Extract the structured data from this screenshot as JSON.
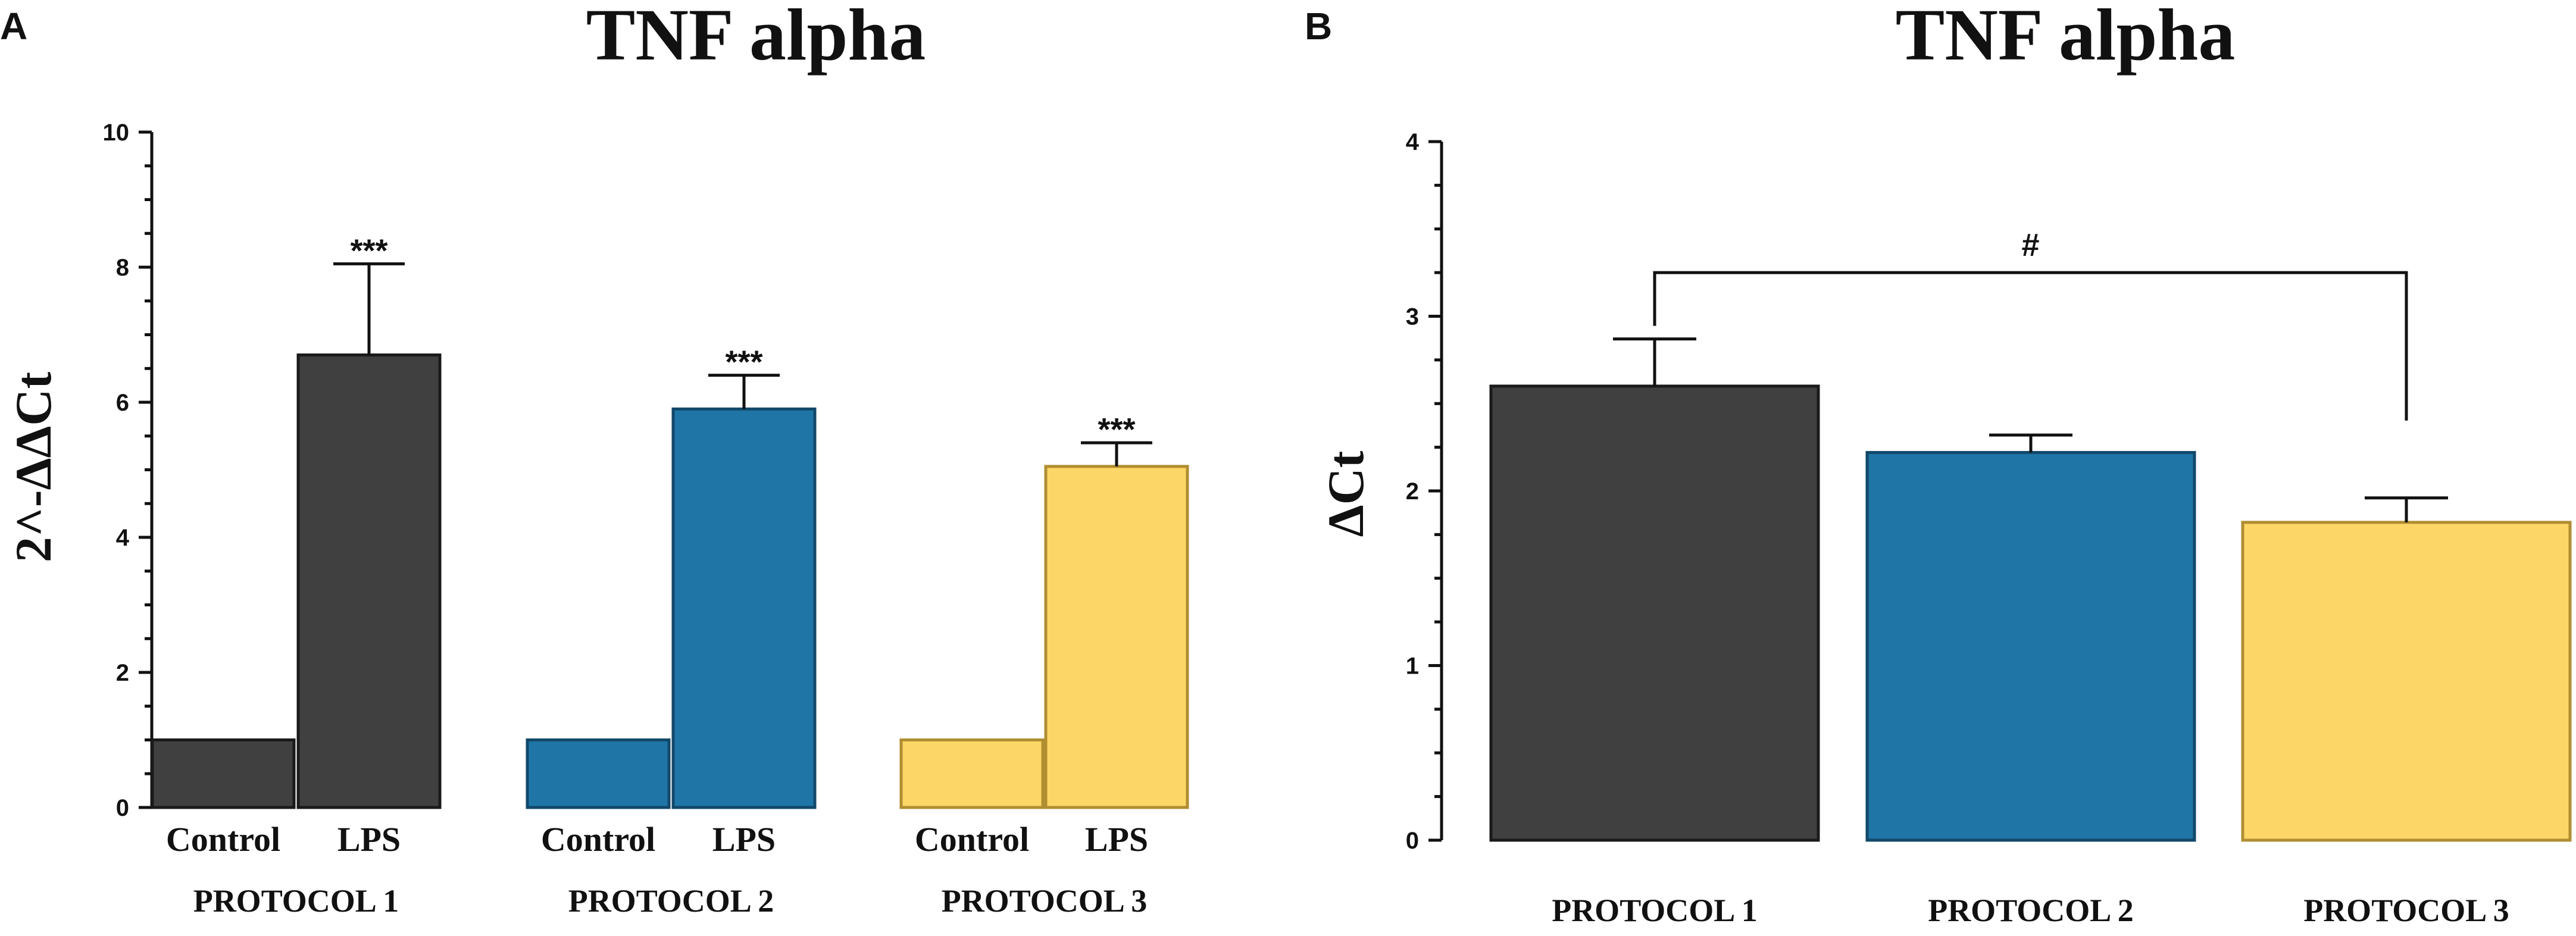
{
  "chart_data": [
    {
      "panel": "A",
      "type": "bar",
      "title": "TNF alpha",
      "ylabel": "2^-ΔΔCt",
      "xlabel": "",
      "ylim": [
        0,
        10
      ],
      "yticks": [
        "0",
        "2",
        "4",
        "6",
        "8",
        "10"
      ],
      "groups": [
        "PROTOCOL 1",
        "PROTOCOL 2",
        "PROTOCOL 3"
      ],
      "categories": [
        "Control",
        "LPS"
      ],
      "bars": [
        {
          "group": "PROTOCOL 1",
          "label": "Control",
          "value": 1.0,
          "error": 0,
          "color": "#404040",
          "edge": "#1a1a1a",
          "sig": ""
        },
        {
          "group": "PROTOCOL 1",
          "label": "LPS",
          "value": 6.7,
          "error": 1.35,
          "color": "#404040",
          "edge": "#1a1a1a",
          "sig": "***"
        },
        {
          "group": "PROTOCOL 2",
          "label": "Control",
          "value": 1.0,
          "error": 0,
          "color": "#1f76a6",
          "edge": "#12486a",
          "sig": ""
        },
        {
          "group": "PROTOCOL 2",
          "label": "LPS",
          "value": 5.9,
          "error": 0.5,
          "color": "#1f76a6",
          "edge": "#12486a",
          "sig": "***"
        },
        {
          "group": "PROTOCOL 3",
          "label": "Control",
          "value": 1.0,
          "error": 0,
          "color": "#fcd767",
          "edge": "#b08e31",
          "sig": ""
        },
        {
          "group": "PROTOCOL 3",
          "label": "LPS",
          "value": 5.05,
          "error": 0.35,
          "color": "#fcd767",
          "edge": "#b08e31",
          "sig": "***"
        }
      ]
    },
    {
      "panel": "B",
      "type": "bar",
      "title": "TNF alpha",
      "ylabel": "ΔCt",
      "xlabel": "",
      "ylim": [
        0,
        4
      ],
      "yticks": [
        "0",
        "1",
        "2",
        "3",
        "4"
      ],
      "categories": [
        "PROTOCOL 1",
        "PROTOCOL 2",
        "PROTOCOL 3"
      ],
      "bars": [
        {
          "label": "PROTOCOL 1",
          "value": 2.6,
          "error": 0.27,
          "color": "#404040",
          "edge": "#1a1a1a"
        },
        {
          "label": "PROTOCOL 2",
          "value": 2.22,
          "error": 0.1,
          "color": "#1f76a6",
          "edge": "#12486a"
        },
        {
          "label": "PROTOCOL 3",
          "value": 1.82,
          "error": 0.14,
          "color": "#fcd767",
          "edge": "#b08e31"
        }
      ],
      "comparison": {
        "from": "PROTOCOL 1",
        "to": "PROTOCOL 3",
        "label": "#",
        "y": 3.25
      }
    }
  ]
}
